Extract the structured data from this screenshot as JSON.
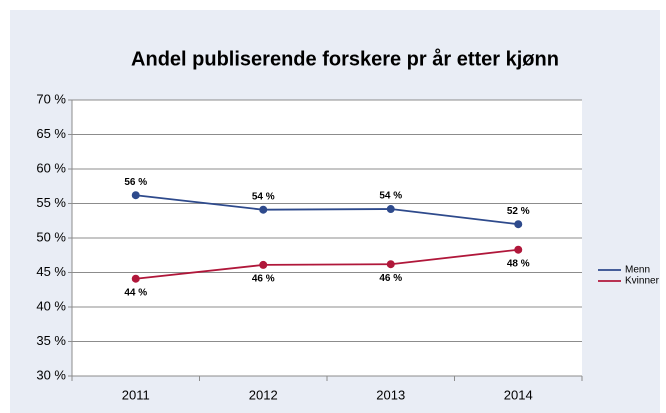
{
  "chart_data": {
    "type": "line",
    "title": "Andel publiserende forskere pr år etter kjønn",
    "categories": [
      "2011",
      "2012",
      "2013",
      "2014"
    ],
    "series": [
      {
        "name": "Menn",
        "color": "#2e4a8c",
        "values": [
          56.2,
          54.1,
          54.2,
          52.0
        ],
        "value_labels": [
          "56 %",
          "54 %",
          "54 %",
          "52 %"
        ]
      },
      {
        "name": "Kvinner",
        "color": "#b0173a",
        "values": [
          44.1,
          46.1,
          46.2,
          48.3
        ],
        "value_labels": [
          "44 %",
          "46 %",
          "46 %",
          "48 %"
        ]
      }
    ],
    "ylim": [
      30,
      70
    ],
    "yticks": [
      {
        "value": 30,
        "label": "30 %"
      },
      {
        "value": 35,
        "label": "35 %"
      },
      {
        "value": 40,
        "label": "40 %"
      },
      {
        "value": 45,
        "label": "45 %"
      },
      {
        "value": 50,
        "label": "50 %"
      },
      {
        "value": 55,
        "label": "55 %"
      },
      {
        "value": 60,
        "label": "60 %"
      },
      {
        "value": 65,
        "label": "65 %"
      },
      {
        "value": 70,
        "label": "70 %"
      }
    ],
    "grid": true,
    "legend": "right"
  }
}
